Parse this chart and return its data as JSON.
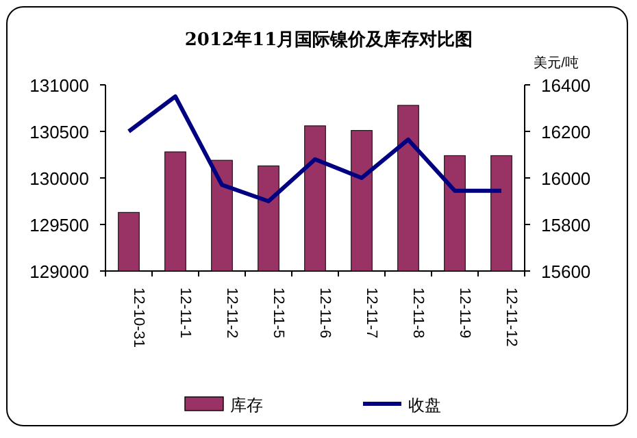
{
  "chart_data": {
    "type": "bar",
    "title": "2012年11月国际镍价及库存对比图",
    "y2label": "美元/吨",
    "categories": [
      "12-10-31",
      "12-11-1",
      "12-11-2",
      "12-11-5",
      "12-11-6",
      "12-11-7",
      "12-11-8",
      "12-11-9",
      "12-11-12"
    ],
    "series": [
      {
        "name": "库存",
        "color": "#993366",
        "values": [
          129630,
          130280,
          130190,
          130130,
          130560,
          130510,
          130780,
          130240,
          130240
        ]
      },
      {
        "name": "收盘",
        "type": "line",
        "axis": "y2",
        "color": "#000080",
        "values": [
          16200,
          16350,
          15970,
          15900,
          16080,
          16000,
          16165,
          15945,
          15945
        ]
      }
    ],
    "ylim": [
      129000,
      131000
    ],
    "yticks": [
      129000,
      129500,
      130000,
      130500,
      131000
    ],
    "y2lim": [
      15600,
      16400
    ],
    "y2ticks": [
      15600,
      15800,
      16000,
      16200,
      16400
    ],
    "grid": false,
    "legend": "bottom"
  }
}
